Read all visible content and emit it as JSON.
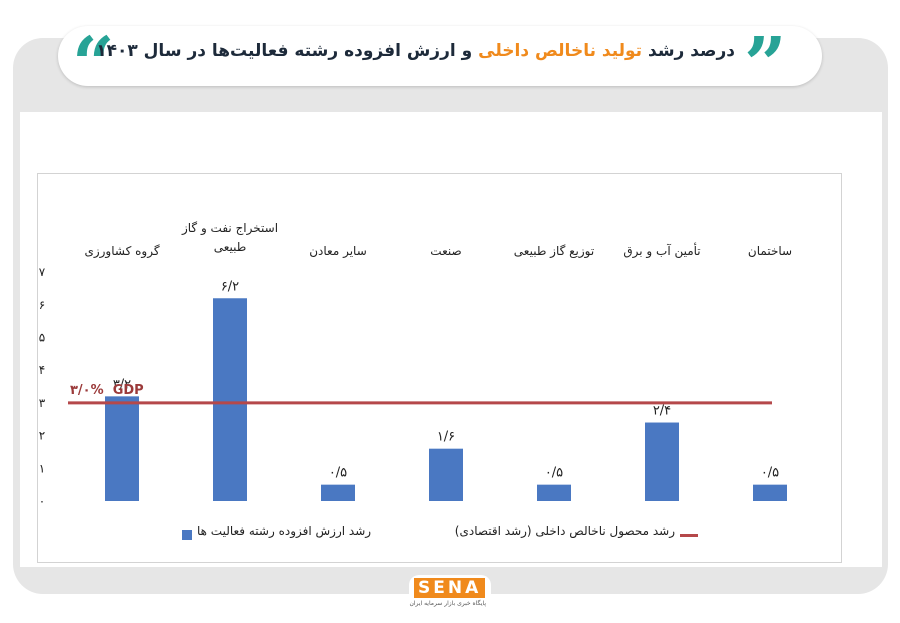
{
  "header": {
    "title_part1": "درصد رشد ",
    "title_highlight": "تولید ناخالص داخلی",
    "title_part2": " و ارزش افزوده رشته فعالیت‌ها در سال ۱۴۰۳"
  },
  "colors": {
    "bar": "#4a78c2",
    "gdp_line": "#b5484a",
    "accent_quote": "#27a396",
    "accent_orange": "#f08a1c"
  },
  "chart_data": {
    "type": "bar",
    "categories": [
      "گروه کشاورزی",
      "استخراج نفت و گاز طبیعی",
      "سایر معادن",
      "صنعت",
      "توزیع گاز طبیعی",
      "تأمین آب و برق",
      "ساختمان"
    ],
    "category_lines": [
      [
        "گروه کشاورزی"
      ],
      [
        "استخراج نفت و گاز",
        "طبیعی"
      ],
      [
        "سایر معادن"
      ],
      [
        "صنعت"
      ],
      [
        "توزیع گاز طبیعی"
      ],
      [
        "تأمین آب و برق"
      ],
      [
        "ساختمان"
      ]
    ],
    "series": [
      {
        "name": "رشد ارزش افزوده رشته فعالیت ها",
        "values": [
          3.2,
          6.2,
          0.5,
          1.6,
          0.5,
          2.4,
          0.5
        ]
      }
    ],
    "data_labels": [
      "۳/۲",
      "۶/۲",
      "۰/۵",
      "۱/۶",
      "۰/۵",
      "۲/۴",
      "۰/۵"
    ],
    "reference_line": {
      "name": "رشد محصول ناخالص داخلی (رشد اقتصادی)",
      "value": 3.0,
      "label_value": "۳/۰%",
      "label_text": "GDP"
    },
    "yticks": [
      "۰",
      "۱",
      "۲",
      "۳",
      "۴",
      "۵",
      "۶",
      "۷"
    ],
    "ylim": [
      0,
      7
    ],
    "grid": false,
    "legend_position": "bottom"
  },
  "logo": {
    "text": "SENA",
    "subtitle": "پایگاه خبری بازار سرمایه ایران"
  }
}
